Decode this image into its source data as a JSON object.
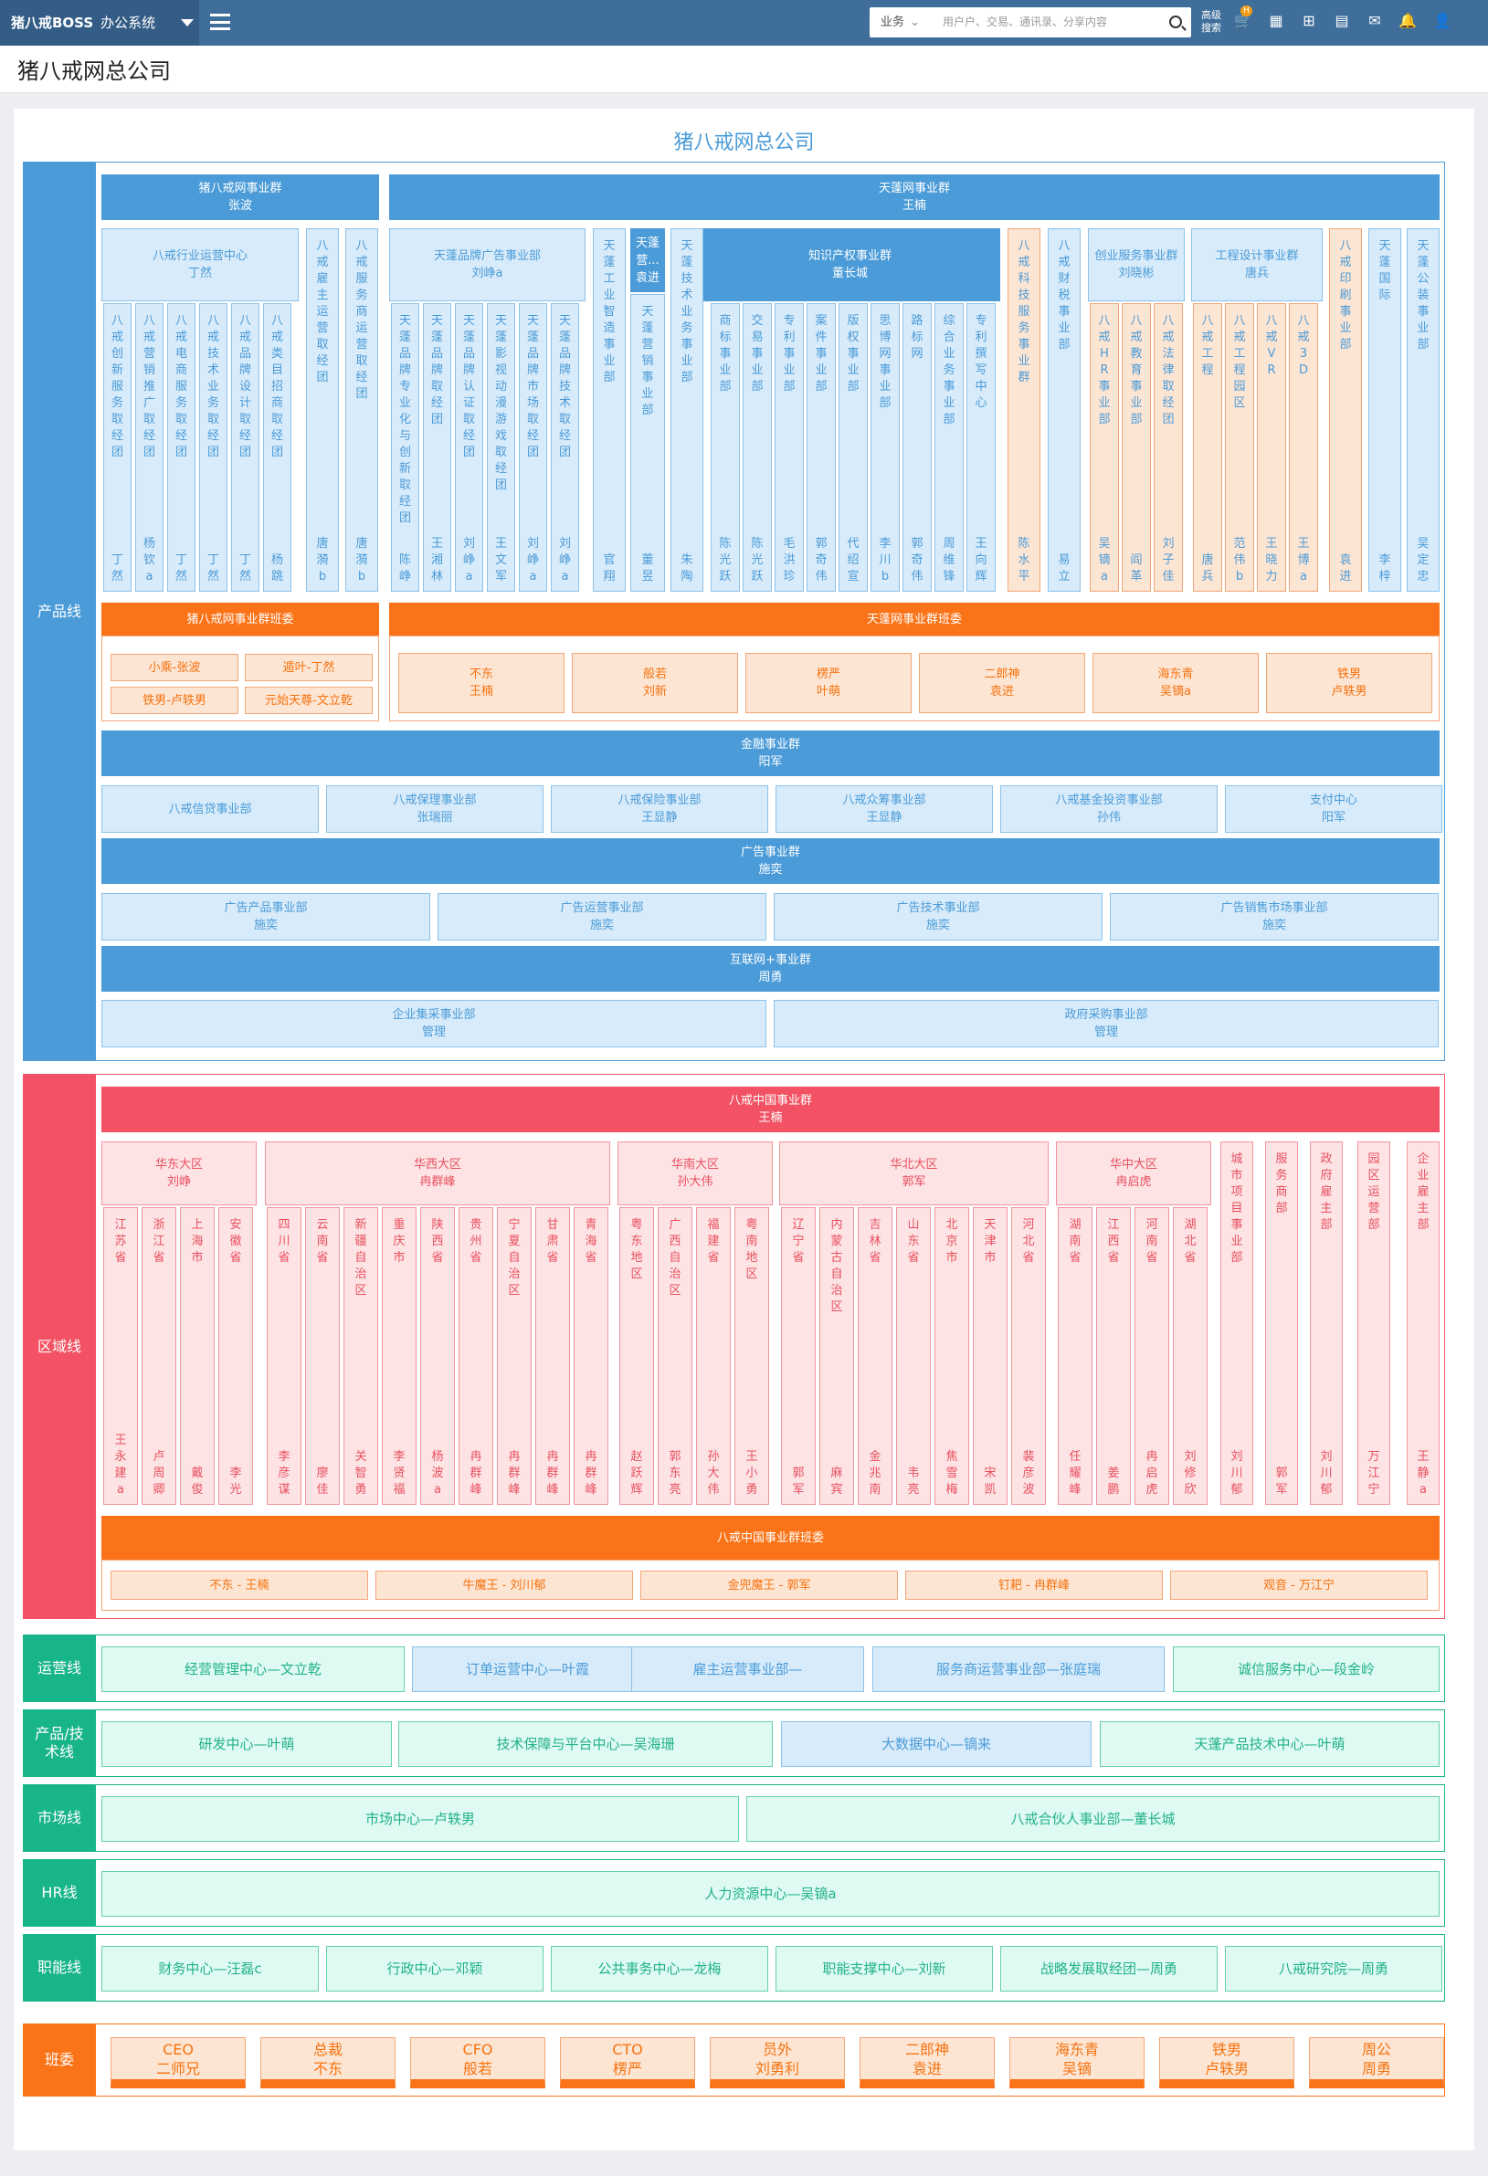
{
  "header": {
    "logo": "猪八戒BOSS",
    "system": "办公系统",
    "search_category": "业务",
    "search_placeholder": "用户户、交易、通讯录、分享内容",
    "advanced": "高级搜索",
    "badge": "H"
  },
  "page_title": "猪八戒网总公司",
  "chart_title": "猪八戒网总公司",
  "sections": {
    "product": "产品线",
    "region": "区域线",
    "ops": "运营线",
    "tech": "产品/技术线",
    "market": "市场线",
    "hr": "HR线",
    "func": "职能线",
    "committee": "班委"
  },
  "product": {
    "g1": {
      "name": "猪八戒网事业群",
      "head": "张波"
    },
    "g2": {
      "name": "天蓬网事业群",
      "head": "王楠"
    },
    "d_hangye": {
      "name": "八戒行业运营中心",
      "head": "丁然"
    },
    "d_pinpai": {
      "name": "天蓬品牌广告事业部",
      "head": "刘峥a"
    },
    "d_zhishi": {
      "name": "知识产权事业群",
      "head": "董长城"
    },
    "d_chuangye": {
      "name": "创业服务事业群",
      "head": "刘晓彬"
    },
    "d_gongcheng": {
      "name": "工程设计事业群",
      "head": "唐兵"
    },
    "d_tianpengying": {
      "name": "天蓬营...",
      "head": "袁进"
    },
    "cols": [
      {
        "name": "八戒创新服务取经团",
        "head": "丁然"
      },
      {
        "name": "八戒营销推广取经团",
        "head": "杨钦a"
      },
      {
        "name": "八戒电商服务取经团",
        "head": "丁然"
      },
      {
        "name": "八戒技术业务取经团",
        "head": "丁然"
      },
      {
        "name": "八戒品牌设计取经团",
        "head": "丁然"
      },
      {
        "name": "八戒类目招商取经团",
        "head": "杨跳"
      },
      {
        "name": "八戒雇主运营取经团",
        "head": "唐漪b"
      },
      {
        "name": "八戒服务商运营取经团",
        "head": "唐漪b"
      },
      {
        "name": "天蓬品牌专业化与创新取经团",
        "head": "陈峥"
      },
      {
        "name": "天蓬品牌取经团",
        "head": "王湘林"
      },
      {
        "name": "天蓬品牌认证取经团",
        "head": "刘峥a"
      },
      {
        "name": "天蓬影视动漫游戏取经团",
        "head": "王文军"
      },
      {
        "name": "天蓬品牌市场取经团",
        "head": "刘峥a"
      },
      {
        "name": "天蓬品牌技术取经团",
        "head": "刘峥a"
      },
      {
        "name": "天蓬工业智造事业部",
        "head": "官翔"
      },
      {
        "name": "天蓬营销事业部",
        "head": "董昱"
      },
      {
        "name": "天蓬技术业务事业部",
        "head": "朱陶"
      },
      {
        "name": "商标事业部",
        "head": "陈光跃"
      },
      {
        "name": "交易事业部",
        "head": "陈光跃"
      },
      {
        "name": "专利事业部",
        "head": "毛洪珍"
      },
      {
        "name": "案件事业部",
        "head": "郭奇伟"
      },
      {
        "name": "版权事业部",
        "head": "代绍宣"
      },
      {
        "name": "思博网事业部",
        "head": "李川b"
      },
      {
        "name": "路标网",
        "head": "郭奇伟"
      },
      {
        "name": "综合业务事业部",
        "head": "周维锋"
      },
      {
        "name": "专利撰写中心",
        "head": "王向辉"
      },
      {
        "name": "八戒科技服务事业群",
        "head": "陈水平"
      },
      {
        "name": "八戒财税事业部",
        "head": "易立"
      },
      {
        "name": "八戒HR事业部",
        "head": "吴镝a"
      },
      {
        "name": "八戒教育事业部",
        "head": "阎革"
      },
      {
        "name": "八戒法律取经团",
        "head": "刘子佳"
      },
      {
        "name": "八戒工程",
        "head": "唐兵"
      },
      {
        "name": "八戒工程园区",
        "head": "范伟b"
      },
      {
        "name": "八戒VR",
        "head": "王晓力"
      },
      {
        "name": "八戒3D",
        "head": "王博a"
      },
      {
        "name": "八戒印刷事业部",
        "head": "袁进"
      },
      {
        "name": "天蓬国际",
        "head": "李梓"
      },
      {
        "name": "天蓬公装事业部",
        "head": "吴定忠"
      }
    ],
    "bw1": {
      "title": "猪八戒网事业群班委",
      "members": [
        "小乘-张波",
        "遁叶-丁然",
        "铁男-卢轶男",
        "元始天尊-文立乾"
      ]
    },
    "bw2": {
      "title": "天蓬网事业群班委",
      "members": [
        {
          "a": "不东",
          "b": "王楠"
        },
        {
          "a": "般若",
          "b": "刘新"
        },
        {
          "a": "楞严",
          "b": "叶萌"
        },
        {
          "a": "二郎神",
          "b": "袁进"
        },
        {
          "a": "海东青",
          "b": "吴镝a"
        },
        {
          "a": "铁男",
          "b": "卢轶男"
        }
      ]
    },
    "jinrong": {
      "name": "金融事业群",
      "head": "阳军"
    },
    "jinrong_d": [
      {
        "a": "八戒信贷事业部",
        "b": ""
      },
      {
        "a": "八戒保理事业部",
        "b": "张瑞丽"
      },
      {
        "a": "八戒保险事业部",
        "b": "王显静"
      },
      {
        "a": "八戒众筹事业部",
        "b": "王显静"
      },
      {
        "a": "八戒基金投资事业部",
        "b": "孙伟"
      },
      {
        "a": "支付中心",
        "b": "阳军"
      }
    ],
    "guanggao": {
      "name": "广告事业群",
      "head": "施奕"
    },
    "guanggao_d": [
      {
        "a": "广告产品事业部",
        "b": "施奕"
      },
      {
        "a": "广告运营事业部",
        "b": "施奕"
      },
      {
        "a": "广告技术事业部",
        "b": "施奕"
      },
      {
        "a": "广告销售市场事业部",
        "b": "施奕"
      }
    ],
    "hulian": {
      "name": "互联网+事业群",
      "head": "周勇"
    },
    "hulian_d": [
      {
        "a": "企业集采事业部",
        "b": "管理"
      },
      {
        "a": "政府采购事业部",
        "b": "管理"
      }
    ]
  },
  "region": {
    "g": {
      "name": "八戒中国事业群",
      "head": "王楠"
    },
    "areas": [
      {
        "a": "华东大区",
        "b": "刘峥"
      },
      {
        "a": "华西大区",
        "b": "冉群峰"
      },
      {
        "a": "华南大区",
        "b": "孙大伟"
      },
      {
        "a": "华北大区",
        "b": "郭军"
      },
      {
        "a": "华中大区",
        "b": "冉启虎"
      }
    ],
    "cols": [
      {
        "name": "江苏省",
        "head": "王永建a"
      },
      {
        "name": "浙江省",
        "head": "卢周卿"
      },
      {
        "name": "上海市",
        "head": "戴俊"
      },
      {
        "name": "安徽省",
        "head": "李光"
      },
      {
        "name": "四川省",
        "head": "李彦谋"
      },
      {
        "name": "云南省",
        "head": "廖佳"
      },
      {
        "name": "新疆自治区",
        "head": "关智勇"
      },
      {
        "name": "重庆市",
        "head": "李贤福"
      },
      {
        "name": "陕西省",
        "head": "杨波a"
      },
      {
        "name": "贵州省",
        "head": "冉群峰"
      },
      {
        "name": "宁夏自治区",
        "head": "冉群峰"
      },
      {
        "name": "甘肃省",
        "head": "冉群峰"
      },
      {
        "name": "青海省",
        "head": "冉群峰"
      },
      {
        "name": "粤东地区",
        "head": "赵跃辉"
      },
      {
        "name": "广西自治区",
        "head": "郭东亮"
      },
      {
        "name": "福建省",
        "head": "孙大伟"
      },
      {
        "name": "粤南地区",
        "head": "王小勇"
      },
      {
        "name": "辽宁省",
        "head": "郭军"
      },
      {
        "name": "内蒙古自治区",
        "head": "麻宾"
      },
      {
        "name": "吉林省",
        "head": "金兆南"
      },
      {
        "name": "山东省",
        "head": "韦亮"
      },
      {
        "name": "北京市",
        "head": "焦雪梅"
      },
      {
        "name": "天津市",
        "head": "宋凯"
      },
      {
        "name": "河北省",
        "head": "裴彦波"
      },
      {
        "name": "湖南省",
        "head": "任耀峰"
      },
      {
        "name": "江西省",
        "head": "姜鹏"
      },
      {
        "name": "河南省",
        "head": "冉启虎"
      },
      {
        "name": "湖北省",
        "head": "刘修欣"
      },
      {
        "name": "城市项目事业部",
        "head": "刘川郁"
      },
      {
        "name": "服务商部",
        "head": "郭军"
      },
      {
        "name": "政府雇主部",
        "head": "刘川郁"
      },
      {
        "name": "园区运营部",
        "head": "万江宁"
      },
      {
        "name": "企业雇主部",
        "head": "王静a"
      }
    ],
    "bw": {
      "title": "八戒中国事业群班委",
      "members": [
        "不东 - 王楠",
        "牛魔王 - 刘川郁",
        "金兜魔王 - 郭军",
        "钉耙 - 冉群峰",
        "观音 - 万江宁"
      ]
    }
  },
  "ops": [
    "经营管理中心—文立乾",
    "订单运营中心—叶霞",
    "雇主运营事业部—",
    "服务商运营事业部—张庭瑞",
    "诚信服务中心—段金岭"
  ],
  "tech": [
    "研发中心—叶萌",
    "技术保障与平台中心—吴海珊",
    "大数据中心—镝来",
    "天蓬产品技术中心—叶萌"
  ],
  "market": [
    "市场中心—卢轶男",
    "八戒合伙人事业部—董长城"
  ],
  "hr": [
    "人力资源中心—吴镝a"
  ],
  "func": [
    "财务中心—汪磊c",
    "行政中心—邓颖",
    "公共事务中心—龙梅",
    "职能支撑中心—刘新",
    "战略发展取经团—周勇",
    "八戒研究院—周勇"
  ],
  "committee": [
    {
      "a": "CEO",
      "b": "二师兄"
    },
    {
      "a": "总裁",
      "b": "不东"
    },
    {
      "a": "CFO",
      "b": "般若"
    },
    {
      "a": "CTO",
      "b": "楞严"
    },
    {
      "a": "员外",
      "b": "刘勇利"
    },
    {
      "a": "二郎神",
      "b": "袁进"
    },
    {
      "a": "海东青",
      "b": "吴镝"
    },
    {
      "a": "铁男",
      "b": "卢轶男"
    },
    {
      "a": "周公",
      "b": "周勇"
    }
  ],
  "colors": {
    "blue": "#4a9bd8",
    "orange": "#fb7318",
    "red": "#f25263",
    "teal": "#18b48a"
  }
}
